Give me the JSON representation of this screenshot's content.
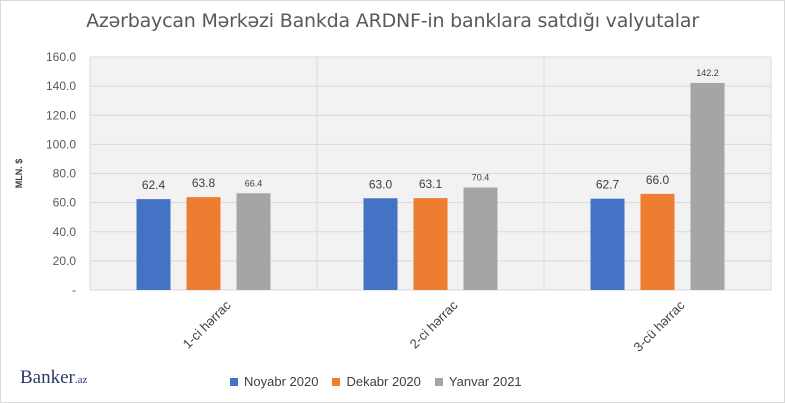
{
  "chart_data": {
    "type": "bar",
    "title": "Azərbaycan Mərkəzi Bankda ARDNF-in banklara satdığı valyutalar",
    "ylabel": "MLN. $",
    "xlabel": "",
    "ylim": [
      0,
      160
    ],
    "yticks": [
      "-",
      "20.0",
      "40.0",
      "60.0",
      "80.0",
      "100.0",
      "120.0",
      "140.0",
      "160.0"
    ],
    "categories": [
      "1-ci hərrac",
      "2-ci hərrac",
      "3-cü hərrac"
    ],
    "series": [
      {
        "name": "Noyabr 2020",
        "color": "#4472c4",
        "values": [
          62.4,
          63.0,
          62.7
        ],
        "labels": [
          "62.4",
          "63.0",
          "62.7"
        ]
      },
      {
        "name": "Dekabr 2020",
        "color": "#ed7d31",
        "values": [
          63.8,
          63.1,
          66.0
        ],
        "labels": [
          "63.8",
          "63.1",
          "66.0"
        ]
      },
      {
        "name": "Yanvar 2021",
        "color": "#a5a5a5",
        "values": [
          66.4,
          70.4,
          142.2
        ],
        "labels": [
          "66.4",
          "70.4",
          "142.2"
        ]
      }
    ],
    "grid": true,
    "legend_position": "bottom"
  },
  "logo": {
    "text": "Banker",
    "suffix": ".az"
  }
}
